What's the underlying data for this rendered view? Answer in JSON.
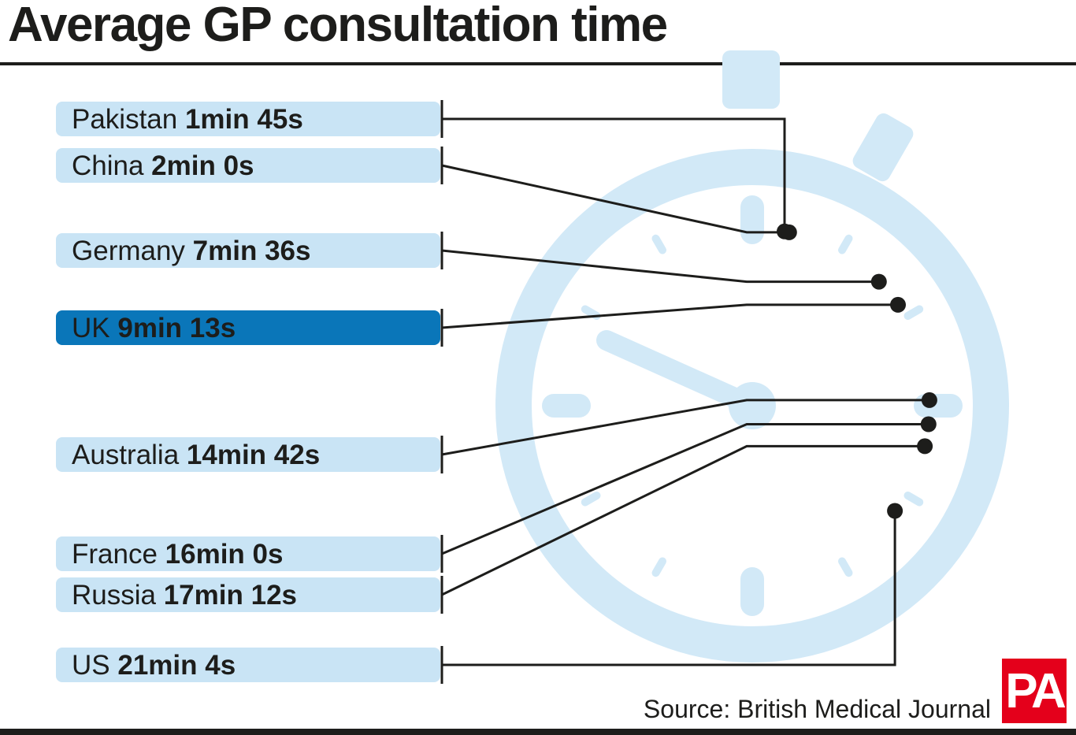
{
  "title": "Average GP consultation time",
  "source": "Source: British Medical Journal",
  "logo_text": "PA",
  "colors": {
    "label_bg": "#c9e4f5",
    "highlight_bg": "#0a76b9",
    "leader": "#1d1d1b",
    "stopwatch": "#d2e9f7",
    "logo": "#e4001b"
  },
  "icon": "stopwatch-icon",
  "chart_data": {
    "type": "dial",
    "unit": "seconds",
    "dial_full_scale": 3600,
    "items": [
      {
        "country": "Pakistan",
        "value_label": "1min 45s",
        "seconds": 105
      },
      {
        "country": "China",
        "value_label": "2min 0s",
        "seconds": 120
      },
      {
        "country": "Germany",
        "value_label": "7min 36s",
        "seconds": 456
      },
      {
        "country": "UK",
        "value_label": "9min 13s",
        "seconds": 553,
        "highlight": true
      },
      {
        "country": "Australia",
        "value_label": "14min 42s",
        "seconds": 882
      },
      {
        "country": "France",
        "value_label": "16min 0s",
        "seconds": 960
      },
      {
        "country": "Russia",
        "value_label": "17min 12s",
        "seconds": 1032
      },
      {
        "country": "US",
        "value_label": "21min 4s",
        "seconds": 1264
      }
    ]
  }
}
